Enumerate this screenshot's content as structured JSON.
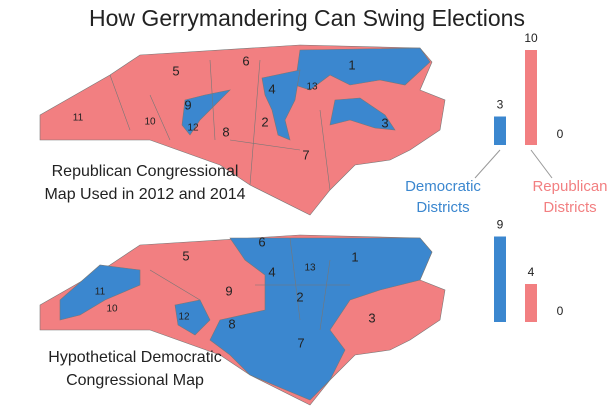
{
  "title": "How Gerrymandering Can Swing Elections",
  "categories": [
    "Democratic Districts",
    "Republican Districts"
  ],
  "colors": [
    "#3b87cf",
    "#f27f81"
  ],
  "maps": [
    {
      "caption": [
        "Republican Congressional",
        "Map Used in 2012 and 2014"
      ],
      "districts": [
        "1",
        "5",
        "6",
        "4",
        "13",
        "9",
        "11",
        "10",
        "12",
        "8",
        "2",
        "3",
        "7"
      ]
    },
    {
      "caption": [
        "Hypothetical Democratic",
        "Congressional Map"
      ],
      "districts": [
        "6",
        "1",
        "5",
        "4",
        "13",
        "11",
        "9",
        "10",
        "12",
        "2",
        "8",
        "3",
        "7"
      ]
    }
  ],
  "chart_data": [
    {
      "type": "bar",
      "values": [
        3,
        10
      ],
      "ylim": [
        0,
        10
      ],
      "yticks": [
        0
      ]
    },
    {
      "type": "bar",
      "values": [
        9,
        4
      ],
      "ylim": [
        0,
        10
      ],
      "yticks": [
        0
      ]
    }
  ]
}
